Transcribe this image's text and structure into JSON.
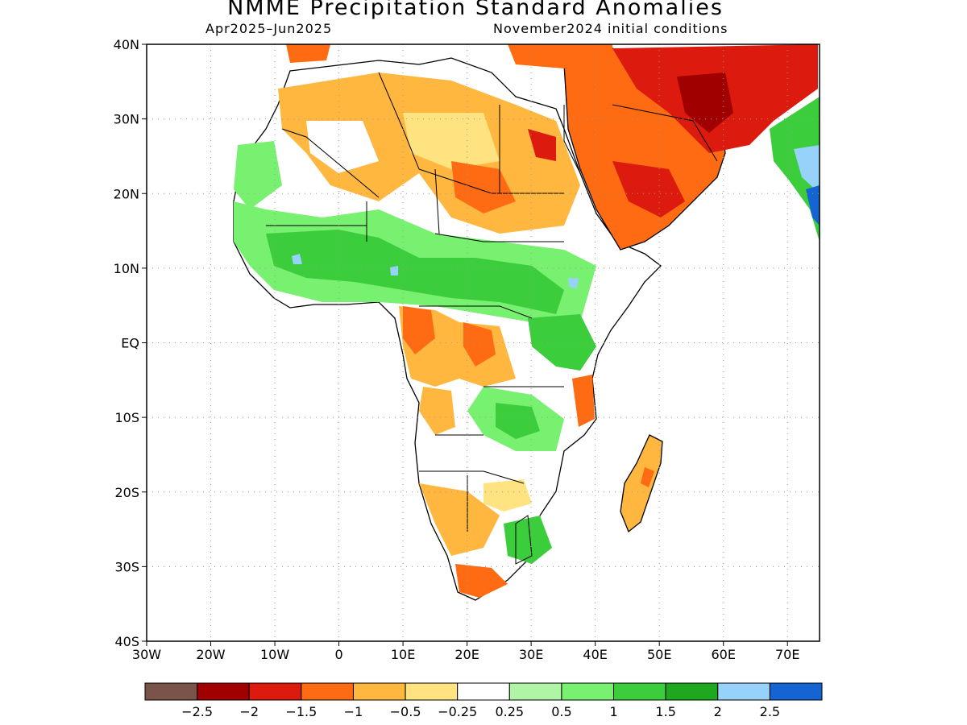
{
  "title": "NMME Precipitation Standard Anomalies",
  "subtitle_left": "Apr2025–Jun2025",
  "subtitle_right": "November2024 initial conditions",
  "map": {
    "lon_range": [
      -30,
      75
    ],
    "lat_range": [
      -40,
      40
    ],
    "lat_ticks": [
      {
        "value": 40,
        "label": "40N"
      },
      {
        "value": 30,
        "label": "30N"
      },
      {
        "value": 20,
        "label": "20N"
      },
      {
        "value": 10,
        "label": "10N"
      },
      {
        "value": 0,
        "label": "EQ"
      },
      {
        "value": -10,
        "label": "10S"
      },
      {
        "value": -20,
        "label": "20S"
      },
      {
        "value": -30,
        "label": "30S"
      },
      {
        "value": -40,
        "label": "40S"
      }
    ],
    "lon_ticks": [
      {
        "value": -30,
        "label": "30W"
      },
      {
        "value": -20,
        "label": "20W"
      },
      {
        "value": -10,
        "label": "10W"
      },
      {
        "value": 0,
        "label": "0"
      },
      {
        "value": 10,
        "label": "10E"
      },
      {
        "value": 20,
        "label": "20E"
      },
      {
        "value": 30,
        "label": "30E"
      },
      {
        "value": 40,
        "label": "40E"
      },
      {
        "value": 50,
        "label": "50E"
      },
      {
        "value": 60,
        "label": "60E"
      },
      {
        "value": 70,
        "label": "70E"
      }
    ],
    "grid": true
  },
  "colorbar": {
    "colors": [
      "#7a5449",
      "#a00000",
      "#dc1a0e",
      "#ff6b12",
      "#ffb740",
      "#ffe380",
      "#ffffff",
      "#b0f5a6",
      "#78f070",
      "#3ccd3c",
      "#1fa81f",
      "#96d2fa",
      "#1464d2"
    ],
    "labels": [
      "−2.5",
      "−2",
      "−1.5",
      "−1",
      "−0.5",
      "−0.25",
      "0.25",
      "0.5",
      "1",
      "1.5",
      "2",
      "2.5"
    ]
  }
}
